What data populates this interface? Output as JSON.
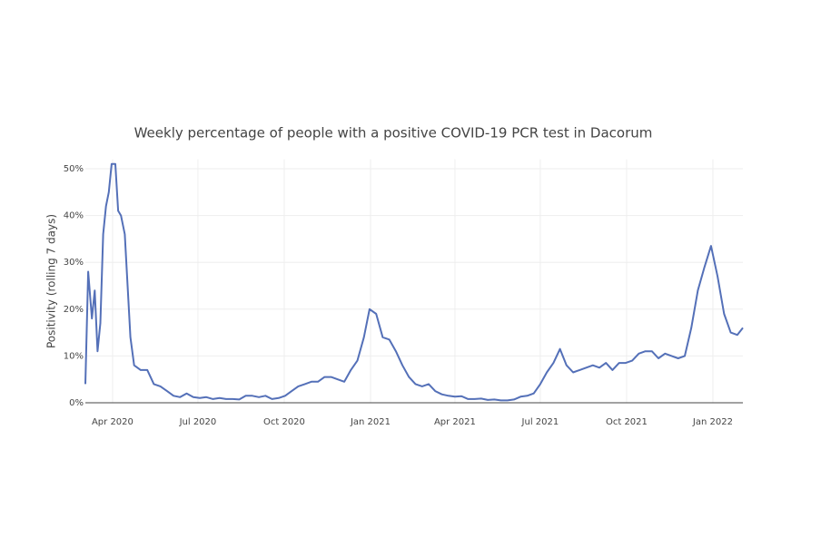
{
  "chart_data": {
    "type": "line",
    "title": "Weekly percentage of people with a positive COVID-19 PCR test in  Dacorum",
    "y_label": "Positivity (rolling 7 days)",
    "x": [
      "2020-03-03",
      "2020-03-06",
      "2020-03-10",
      "2020-03-13",
      "2020-03-16",
      "2020-03-19",
      "2020-03-22",
      "2020-03-25",
      "2020-03-28",
      "2020-03-31",
      "2020-04-04",
      "2020-04-07",
      "2020-04-10",
      "2020-04-14",
      "2020-04-17",
      "2020-04-20",
      "2020-04-24",
      "2020-05-01",
      "2020-05-08",
      "2020-05-15",
      "2020-05-22",
      "2020-05-29",
      "2020-06-05",
      "2020-06-12",
      "2020-06-19",
      "2020-06-26",
      "2020-07-03",
      "2020-07-10",
      "2020-07-17",
      "2020-07-24",
      "2020-07-31",
      "2020-08-07",
      "2020-08-14",
      "2020-08-21",
      "2020-08-28",
      "2020-09-04",
      "2020-09-11",
      "2020-09-18",
      "2020-09-25",
      "2020-10-02",
      "2020-10-09",
      "2020-10-16",
      "2020-10-23",
      "2020-10-30",
      "2020-11-06",
      "2020-11-13",
      "2020-11-20",
      "2020-11-27",
      "2020-12-04",
      "2020-12-11",
      "2020-12-18",
      "2020-12-25",
      "2020-12-31",
      "2021-01-07",
      "2021-01-14",
      "2021-01-21",
      "2021-01-28",
      "2021-02-04",
      "2021-02-11",
      "2021-02-18",
      "2021-02-25",
      "2021-03-04",
      "2021-03-11",
      "2021-03-18",
      "2021-03-25",
      "2021-04-01",
      "2021-04-08",
      "2021-04-15",
      "2021-04-22",
      "2021-04-29",
      "2021-05-06",
      "2021-05-13",
      "2021-05-20",
      "2021-05-27",
      "2021-06-03",
      "2021-06-10",
      "2021-06-17",
      "2021-06-24",
      "2021-07-01",
      "2021-07-08",
      "2021-07-15",
      "2021-07-22",
      "2021-07-29",
      "2021-08-05",
      "2021-08-12",
      "2021-08-19",
      "2021-08-26",
      "2021-09-02",
      "2021-09-09",
      "2021-09-16",
      "2021-09-23",
      "2021-09-30",
      "2021-10-07",
      "2021-10-14",
      "2021-10-21",
      "2021-10-28",
      "2021-11-04",
      "2021-11-11",
      "2021-11-18",
      "2021-11-25",
      "2021-12-02",
      "2021-12-09",
      "2021-12-16",
      "2021-12-23",
      "2021-12-30",
      "2022-01-06",
      "2022-01-13",
      "2022-01-20",
      "2022-01-27",
      "2022-02-02"
    ],
    "series": [
      {
        "name": "Positivity",
        "color": "#5470b8",
        "values": [
          4,
          28,
          18,
          24,
          11,
          17,
          36,
          42,
          45,
          51,
          51,
          41,
          40,
          36,
          25,
          14,
          8,
          7,
          7,
          4,
          3.5,
          2.5,
          1.5,
          1.2,
          2,
          1.2,
          1,
          1.2,
          0.8,
          1,
          0.8,
          0.8,
          0.7,
          1.5,
          1.5,
          1.2,
          1.5,
          0.8,
          1,
          1.5,
          2.5,
          3.5,
          4,
          4.5,
          4.5,
          5.5,
          5.5,
          5,
          4.5,
          7,
          9,
          14,
          20,
          19,
          14,
          13.5,
          11,
          8,
          5.5,
          4,
          3.5,
          4,
          2.5,
          1.8,
          1.5,
          1.3,
          1.4,
          0.8,
          0.8,
          0.9,
          0.6,
          0.7,
          0.5,
          0.5,
          0.7,
          1.3,
          1.5,
          2,
          4,
          6.5,
          8.5,
          11.5,
          8,
          6.5,
          7,
          7.5,
          8,
          7.5,
          8.5,
          7,
          8.5,
          8.5,
          9,
          10.5,
          11,
          11,
          9.5,
          10.5,
          10,
          9.5,
          10,
          16,
          24,
          29,
          33.5,
          27,
          19,
          15,
          14.5,
          16
        ]
      }
    ],
    "xlim": [
      "2020-03-03",
      "2022-02-02"
    ],
    "xticks": [
      {
        "value": "2020-04-01",
        "label": "Apr 2020"
      },
      {
        "value": "2020-07-01",
        "label": "Jul 2020"
      },
      {
        "value": "2020-10-01",
        "label": "Oct 2020"
      },
      {
        "value": "2021-01-01",
        "label": "Jan 2021"
      },
      {
        "value": "2021-04-01",
        "label": "Apr 2021"
      },
      {
        "value": "2021-07-01",
        "label": "Jul 2021"
      },
      {
        "value": "2021-10-01",
        "label": "Oct 2021"
      },
      {
        "value": "2022-01-01",
        "label": "Jan 2022"
      }
    ],
    "ylim": [
      0,
      52
    ],
    "yticks": [
      {
        "value": 0,
        "label": "0%"
      },
      {
        "value": 10,
        "label": "10%"
      },
      {
        "value": 20,
        "label": "20%"
      },
      {
        "value": 30,
        "label": "30%"
      },
      {
        "value": 40,
        "label": "40%"
      },
      {
        "value": 50,
        "label": "50%"
      }
    ],
    "grid": true
  }
}
